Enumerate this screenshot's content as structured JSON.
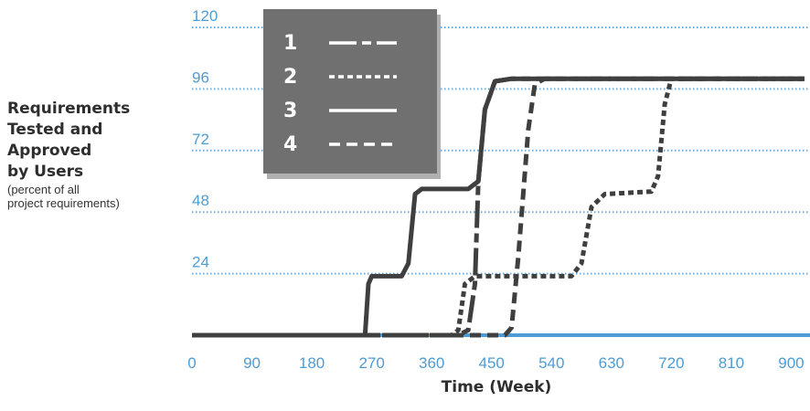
{
  "chart_data": {
    "type": "line",
    "xlabel": "Time (Week)",
    "ylabel": {
      "lines": [
        "Requirements",
        "Tested and",
        "Approved",
        "by Users"
      ],
      "sub_lines": [
        "(percent of all",
        "project requirements)"
      ]
    },
    "xlim": [
      0,
      920
    ],
    "ylim": [
      0,
      120
    ],
    "x_ticks": [
      0,
      90,
      180,
      270,
      360,
      450,
      540,
      630,
      720,
      810,
      900
    ],
    "y_ticks": [
      24,
      48,
      72,
      96,
      120
    ],
    "grid": "horizontal dotted",
    "legend_position": "top-left",
    "series": [
      {
        "name": "1",
        "dash": "long-dash",
        "points": [
          [
            0,
            0
          ],
          [
            400,
            0
          ],
          [
            415,
            2
          ],
          [
            425,
            20
          ],
          [
            430,
            60
          ],
          [
            440,
            88
          ],
          [
            455,
            99
          ],
          [
            480,
            100
          ],
          [
            920,
            100
          ]
        ]
      },
      {
        "name": "2",
        "dash": "short-dash",
        "points": [
          [
            0,
            0
          ],
          [
            390,
            0
          ],
          [
            400,
            2
          ],
          [
            410,
            20
          ],
          [
            425,
            23
          ],
          [
            570,
            23
          ],
          [
            585,
            28
          ],
          [
            600,
            50
          ],
          [
            620,
            55
          ],
          [
            690,
            56
          ],
          [
            700,
            62
          ],
          [
            710,
            90
          ],
          [
            720,
            100
          ],
          [
            920,
            100
          ]
        ]
      },
      {
        "name": "3",
        "dash": "solid",
        "points": [
          [
            0,
            0
          ],
          [
            260,
            0
          ],
          [
            265,
            20
          ],
          [
            270,
            23
          ],
          [
            315,
            23
          ],
          [
            325,
            28
          ],
          [
            335,
            55
          ],
          [
            345,
            57
          ],
          [
            415,
            57
          ],
          [
            430,
            60
          ],
          [
            440,
            88
          ],
          [
            455,
            99
          ],
          [
            480,
            100
          ],
          [
            920,
            100
          ]
        ]
      },
      {
        "name": "4",
        "dash": "dash",
        "points": [
          [
            0,
            0
          ],
          [
            460,
            0
          ],
          [
            470,
            0
          ],
          [
            480,
            3
          ],
          [
            490,
            30
          ],
          [
            505,
            80
          ],
          [
            515,
            98
          ],
          [
            530,
            100
          ],
          [
            920,
            100
          ]
        ]
      }
    ]
  },
  "colors": {
    "line": "#3f3f3f",
    "axis": "#4e9cd3",
    "grid": "#6aaee0",
    "tick_label": "#4e9cd3",
    "legend_bg": "#707070",
    "legend_text": "#ffffff"
  }
}
